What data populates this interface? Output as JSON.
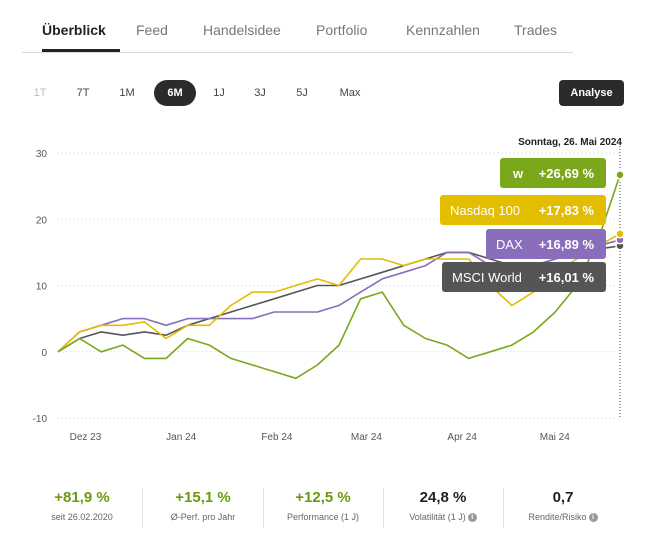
{
  "nav": {
    "tabs": [
      "Überblick",
      "Feed",
      "Handelsidee",
      "Portfolio",
      "Kennzahlen",
      "Trades"
    ]
  },
  "ranges": {
    "items": [
      "1T",
      "7T",
      "1M",
      "6M",
      "1J",
      "3J",
      "5J",
      "Max"
    ],
    "selected": "6M",
    "analyse_label": "Analyse"
  },
  "chart_data": {
    "type": "line",
    "tooltip_date": "Sonntag, 26. Mai 2024",
    "x_tick_labels": [
      "Dez 23",
      "Jan 24",
      "Feb 24",
      "Mar 24",
      "Apr 24",
      "Mai 24"
    ],
    "y_tick_labels": [
      "30",
      "20",
      "10",
      "0",
      "-10"
    ],
    "ylim": [
      -10,
      30
    ],
    "grid": "horizontal dotted",
    "x": [
      "2023-11-26",
      "2023-12-03",
      "2023-12-10",
      "2023-12-17",
      "2023-12-24",
      "2023-12-31",
      "2024-01-07",
      "2024-01-14",
      "2024-01-21",
      "2024-01-28",
      "2024-02-04",
      "2024-02-11",
      "2024-02-18",
      "2024-02-25",
      "2024-03-03",
      "2024-03-10",
      "2024-03-17",
      "2024-03-24",
      "2024-03-31",
      "2024-04-07",
      "2024-04-14",
      "2024-04-21",
      "2024-04-28",
      "2024-05-05",
      "2024-05-12",
      "2024-05-19",
      "2024-05-26"
    ],
    "series": [
      {
        "name": "wikifolio",
        "color": "#7aa81a",
        "label_value": "+26,69 %",
        "values": [
          0,
          2,
          0,
          1,
          -1,
          -1,
          2,
          1,
          -1,
          -2,
          -3,
          -4,
          -2,
          1,
          8,
          9,
          4,
          2,
          1,
          -1,
          0,
          1,
          3,
          6,
          10,
          17,
          26.7
        ]
      },
      {
        "name": "Nasdaq 100",
        "color": "#e2bd00",
        "label_value": "+17,83 %",
        "values": [
          0,
          3,
          4,
          4,
          4.5,
          2,
          4,
          4,
          7,
          9,
          9,
          10,
          11,
          10,
          14,
          14,
          13,
          14,
          14,
          14,
          10,
          7,
          9,
          12,
          14,
          16,
          17.8
        ]
      },
      {
        "name": "DAX",
        "color": "#8a6dbb",
        "label_value": "+16,89 %",
        "values": [
          0,
          3,
          4,
          5,
          5,
          4,
          5,
          5,
          5,
          5,
          6,
          6,
          6,
          7,
          9,
          11,
          12,
          13,
          15,
          15,
          13,
          12,
          13,
          14,
          15,
          16,
          16.9
        ]
      },
      {
        "name": "MSCI World",
        "color": "#555555",
        "label_value": "+16,01 %",
        "values": [
          0,
          2,
          3,
          2.5,
          3,
          2.5,
          4,
          5,
          6,
          7,
          8,
          9,
          10,
          10,
          11,
          12,
          13,
          14,
          15,
          15,
          14,
          13,
          13,
          14,
          15,
          15.5,
          16.0
        ]
      }
    ],
    "wikifolio_badge": "w"
  },
  "kpis": [
    {
      "value": "+81,9 %",
      "label": "seit 26.02.2020",
      "color": "green"
    },
    {
      "value": "+15,1 %",
      "label": "Ø-Perf. pro Jahr",
      "color": "green"
    },
    {
      "value": "+12,5 %",
      "label": "Performance (1 J)",
      "color": "green"
    },
    {
      "value": "24,8 %",
      "label": "Volatilität (1 J)",
      "color": "dark",
      "info": true
    },
    {
      "value": "0,7",
      "label": "Rendite/Risiko",
      "color": "dark",
      "info": true
    }
  ]
}
